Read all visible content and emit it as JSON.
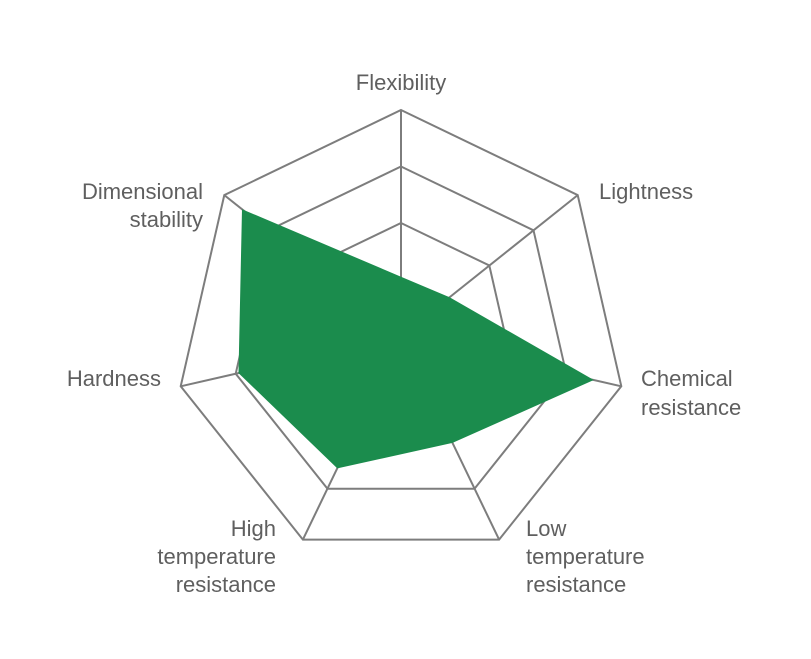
{
  "chart_data": {
    "type": "radar",
    "levels": 4,
    "max": 4,
    "axes": [
      {
        "label": [
          "Flexibility"
        ],
        "value": 1.05
      },
      {
        "label": [
          "Lightness"
        ],
        "value": 1.1
      },
      {
        "label": [
          "Chemical",
          "resistance"
        ],
        "value": 3.5
      },
      {
        "label": [
          "Low",
          "temperature",
          "resistance"
        ],
        "value": 2.1
      },
      {
        "label": [
          "High",
          "temperature",
          "resistance"
        ],
        "value": 2.6
      },
      {
        "label": [
          "Hardness"
        ],
        "value": 2.95
      },
      {
        "label": [
          "Dimensional",
          "stability"
        ],
        "value": 3.6
      }
    ],
    "colors": {
      "fill": "#1b8c4d",
      "grid": "#7d7d7d",
      "label": "#5f5f5f"
    }
  }
}
